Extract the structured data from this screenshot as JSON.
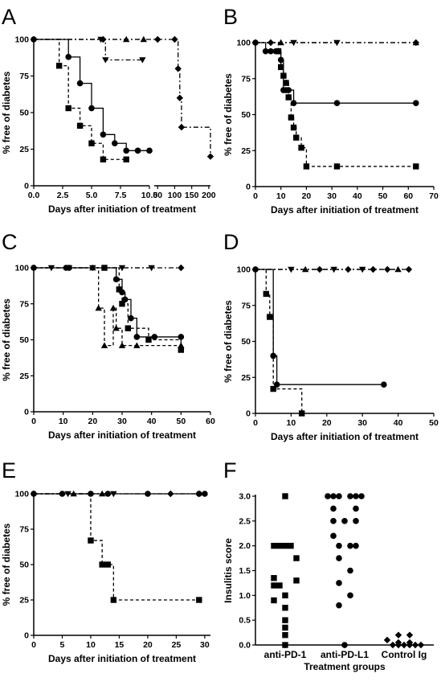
{
  "figure": {
    "panels": [
      "A",
      "B",
      "C",
      "D",
      "E",
      "F"
    ]
  },
  "chart_data": [
    {
      "panel": "A",
      "type": "line",
      "step": true,
      "xlabel": "Days after initiation of treatment",
      "ylabel": "% free of diabetes",
      "xlim": [
        0,
        205
      ],
      "ylim": [
        0,
        100
      ],
      "x_break": true,
      "xticks": [
        "0.0",
        "2.5",
        "5.0",
        "7.5",
        "10.0",
        "50",
        "100",
        "150",
        "200"
      ],
      "yticks": [
        "0",
        "25",
        "50",
        "75",
        "100"
      ],
      "series": [
        {
          "marker": "diamond",
          "dash": "6,3,2,3",
          "x": [
            0,
            6,
            50,
            100,
            110,
            115,
            120,
            205
          ],
          "y": [
            100,
            100,
            100,
            100,
            80,
            60,
            40,
            20
          ]
        },
        {
          "marker": "triangle",
          "dash": "6,3,2,3",
          "x": [
            0,
            8,
            9.5
          ],
          "y": [
            100,
            100,
            100
          ]
        },
        {
          "marker": "triangle-down",
          "dash": "6,3,2,3",
          "x": [
            0,
            5.8,
            6.2,
            9.4
          ],
          "y": [
            100,
            100,
            86,
            86
          ]
        },
        {
          "marker": "circle",
          "dash": "",
          "x": [
            0,
            3,
            4,
            5,
            6,
            7,
            8,
            9,
            10
          ],
          "y": [
            100,
            88,
            70,
            53,
            35,
            29,
            24,
            24,
            24
          ]
        },
        {
          "marker": "square",
          "dash": "4,3",
          "x": [
            0,
            2.2,
            3,
            4,
            5,
            6,
            8
          ],
          "y": [
            100,
            82,
            53,
            41,
            29,
            18,
            18
          ]
        }
      ]
    },
    {
      "panel": "B",
      "type": "line",
      "step": true,
      "xlabel": "Days after initiation of treatment",
      "ylabel": "% free of diabetes",
      "xlim": [
        0,
        70
      ],
      "ylim": [
        0,
        100
      ],
      "xticks": [
        "0",
        "10",
        "20",
        "30",
        "40",
        "50",
        "60",
        "70"
      ],
      "yticks": [
        "0",
        "25",
        "50",
        "75",
        "100"
      ],
      "series": [
        {
          "marker": "diamond",
          "dash": "6,3,2,3",
          "x": [
            0,
            6,
            63
          ],
          "y": [
            100,
            100,
            100
          ]
        },
        {
          "marker": "triangle-down",
          "dash": "6,3,2,3",
          "x": [
            0,
            15,
            32
          ],
          "y": [
            100,
            100,
            100
          ]
        },
        {
          "marker": "triangle",
          "dash": "6,3,2,3",
          "x": [
            0,
            10,
            63
          ],
          "y": [
            100,
            100,
            100
          ]
        },
        {
          "marker": "circle",
          "dash": "",
          "x": [
            0,
            4,
            6,
            8,
            9,
            10,
            11,
            12,
            13,
            15,
            32,
            63
          ],
          "y": [
            100,
            94,
            94,
            94,
            94,
            88,
            67,
            67,
            67,
            58,
            58,
            58
          ]
        },
        {
          "marker": "square",
          "dash": "4,3",
          "x": [
            0,
            9,
            10,
            11,
            12,
            13,
            14,
            15,
            16,
            18,
            20,
            32,
            63
          ],
          "y": [
            100,
            94,
            83,
            77,
            72,
            62,
            48,
            41,
            34,
            27,
            14,
            14,
            14
          ]
        }
      ]
    },
    {
      "panel": "C",
      "type": "line",
      "step": true,
      "xlabel": "Days after initiation of treatment",
      "ylabel": "% free of diabetes",
      "xlim": [
        0,
        60
      ],
      "ylim": [
        0,
        100
      ],
      "xticks": [
        "0",
        "10",
        "20",
        "30",
        "40",
        "50",
        "60"
      ],
      "yticks": [
        "0",
        "25",
        "50",
        "75",
        "100"
      ],
      "series": [
        {
          "marker": "diamond",
          "dash": "6,3,2,3",
          "x": [
            0,
            50
          ],
          "y": [
            100,
            100
          ]
        },
        {
          "marker": "triangle-down",
          "dash": "6,3,2,3",
          "x": [
            0,
            6,
            12,
            20,
            30,
            40
          ],
          "y": [
            100,
            100,
            100,
            100,
            100,
            100
          ]
        },
        {
          "marker": "circle",
          "dash": "",
          "x": [
            0,
            11,
            12,
            28,
            30,
            31,
            33,
            35,
            41,
            50
          ],
          "y": [
            100,
            100,
            100,
            92,
            83,
            78,
            65,
            52,
            52,
            52
          ]
        },
        {
          "marker": "square",
          "dash": "4,3",
          "x": [
            0,
            24,
            29,
            30,
            32,
            39,
            50
          ],
          "y": [
            100,
            100,
            85,
            75,
            58,
            50,
            43
          ]
        },
        {
          "marker": "triangle",
          "dash": "4,3",
          "x": [
            0,
            20,
            22,
            24,
            27,
            28,
            30,
            35,
            50
          ],
          "y": [
            100,
            100,
            72,
            46,
            72,
            58,
            46,
            46,
            46
          ]
        }
      ]
    },
    {
      "panel": "D",
      "type": "line",
      "step": true,
      "xlabel": "Days after initiation of treatment",
      "ylabel": "% free of diabetes",
      "xlim": [
        0,
        50
      ],
      "ylim": [
        0,
        100
      ],
      "xticks": [
        "0",
        "10",
        "20",
        "30",
        "40",
        "50"
      ],
      "yticks": [
        "0",
        "25",
        "50",
        "75",
        "100"
      ],
      "series": [
        {
          "marker": "diamond",
          "dash": "6,3,2,3",
          "x": [
            0,
            18,
            26,
            33,
            37,
            43
          ],
          "y": [
            100,
            100,
            100,
            100,
            100,
            100
          ]
        },
        {
          "marker": "triangle-down",
          "dash": "6,3,2,3",
          "x": [
            0,
            10,
            22,
            30
          ],
          "y": [
            100,
            100,
            100,
            100
          ]
        },
        {
          "marker": "triangle",
          "dash": "6,3,2,3",
          "x": [
            0,
            14,
            40
          ],
          "y": [
            100,
            100,
            100
          ]
        },
        {
          "marker": "circle",
          "dash": "",
          "x": [
            0,
            5,
            6,
            36
          ],
          "y": [
            100,
            40,
            20,
            20
          ]
        },
        {
          "marker": "square",
          "dash": "4,3",
          "x": [
            0,
            3,
            4,
            5,
            13
          ],
          "y": [
            100,
            83,
            67,
            17,
            0
          ]
        }
      ]
    },
    {
      "panel": "E",
      "type": "line",
      "step": true,
      "xlabel": "Days after initiation of treatment",
      "ylabel": "% free of diabetes",
      "xlim": [
        0,
        31
      ],
      "ylim": [
        0,
        100
      ],
      "xticks": [
        "0",
        "5",
        "10",
        "15",
        "20",
        "25",
        "30"
      ],
      "yticks": [
        "0",
        "25",
        "50",
        "75",
        "100"
      ],
      "series": [
        {
          "marker": "diamond",
          "dash": "6,3,2,3",
          "x": [
            0,
            24,
            29
          ],
          "y": [
            100,
            100,
            100
          ]
        },
        {
          "marker": "triangle-down",
          "dash": "6,3,2,3",
          "x": [
            0,
            6,
            14
          ],
          "y": [
            100,
            100,
            100
          ]
        },
        {
          "marker": "triangle",
          "dash": "6,3,2,3",
          "x": [
            0,
            7,
            12
          ],
          "y": [
            100,
            100,
            100
          ]
        },
        {
          "marker": "circle",
          "dash": "",
          "x": [
            0,
            5,
            10,
            13,
            20,
            29,
            30
          ],
          "y": [
            100,
            100,
            100,
            100,
            100,
            100,
            100
          ]
        },
        {
          "marker": "square",
          "dash": "4,3",
          "x": [
            0,
            10,
            12,
            13,
            14,
            29
          ],
          "y": [
            100,
            67,
            50,
            50,
            25,
            25
          ]
        }
      ]
    },
    {
      "panel": "F",
      "type": "scatter",
      "xlabel": "Treatment groups",
      "ylabel": "Insulitis score",
      "ylim": [
        0,
        3
      ],
      "yticks": [
        "0.0",
        "0.5",
        "1.0",
        "1.5",
        "2.0",
        "2.5",
        "3.0"
      ],
      "categories": [
        "anti-PD-1",
        "anti-PD-L1",
        "Control Ig"
      ],
      "series": [
        {
          "name": "anti-PD-1",
          "marker": "square",
          "offsets": [
            0,
            -2,
            -1,
            0,
            1,
            2,
            -2,
            2,
            -2,
            -1,
            0,
            -2,
            0,
            0,
            0,
            0,
            0
          ],
          "values": [
            3.0,
            2.0,
            2.0,
            2.0,
            2.0,
            1.75,
            1.35,
            1.3,
            1.2,
            1.2,
            1.0,
            0.9,
            0.75,
            0.5,
            0.35,
            0.2,
            0.0
          ]
        },
        {
          "name": "anti-PD-L1",
          "marker": "circle",
          "offsets": [
            -3,
            -2,
            -1,
            1,
            2,
            3,
            -2,
            2,
            -2,
            0,
            2,
            -2,
            -1,
            1,
            2,
            -1,
            1,
            -1,
            1,
            -1,
            0
          ],
          "values": [
            3.0,
            3.0,
            3.0,
            3.0,
            3.0,
            3.0,
            2.75,
            2.75,
            2.5,
            2.5,
            2.5,
            2.2,
            2.0,
            2.0,
            2.0,
            1.75,
            1.5,
            1.25,
            1.0,
            0.8,
            0.0
          ]
        },
        {
          "name": "Control Ig",
          "marker": "diamond",
          "offsets": [
            -1,
            1,
            -3,
            -2,
            -1,
            0,
            1,
            2,
            3,
            -1,
            1
          ],
          "values": [
            0.2,
            0.2,
            0.1,
            0.0,
            0.0,
            0.0,
            0.0,
            0.0,
            0.0,
            0.05,
            0.05
          ]
        }
      ]
    }
  ]
}
